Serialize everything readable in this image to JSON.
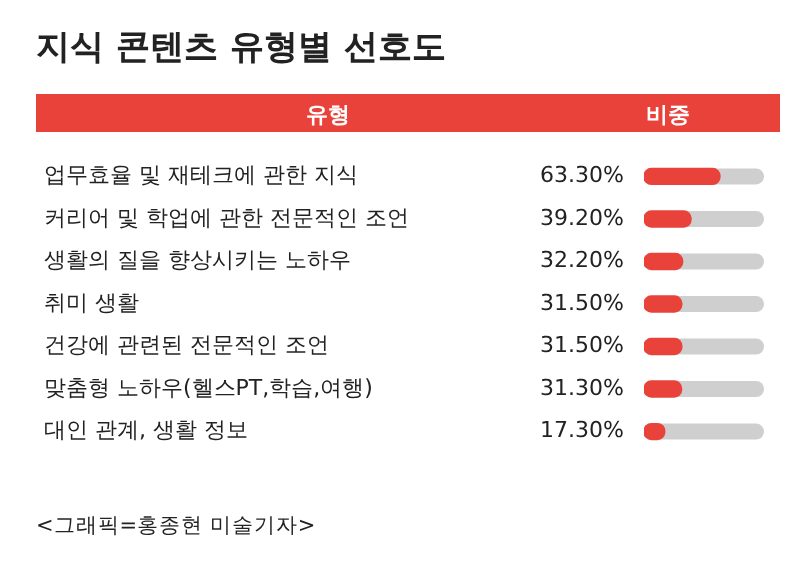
{
  "chart_data": {
    "type": "bar",
    "orientation": "horizontal",
    "title": "지식 콘텐츠 유형별 선호도",
    "ylabel": "유형",
    "xlabel": "비중",
    "categories": [
      "업무효율 및 재테크에 관한 지식",
      "커리어 및 학업에 관한 전문적인 조언",
      "생활의 질을 향상시키는 노하우",
      "취미 생활",
      "건강에 관련된 전문적인 조언",
      "맞춤형 노하우(헬스PT,학습,여행)",
      "대인 관계, 생활 정보"
    ],
    "values": [
      63.3,
      39.2,
      32.2,
      31.5,
      31.5,
      31.3,
      17.3
    ],
    "value_labels": [
      "63.30%",
      "39.20%",
      "32.20%",
      "31.50%",
      "31.50%",
      "31.30%",
      "17.30%"
    ],
    "color": "#e8423a",
    "xlim": [
      0,
      100
    ],
    "tick_labels": "y",
    "grid": false,
    "legend": false,
    "annotations": [
      "<그래픽=홍종현 미술기자>"
    ]
  }
}
